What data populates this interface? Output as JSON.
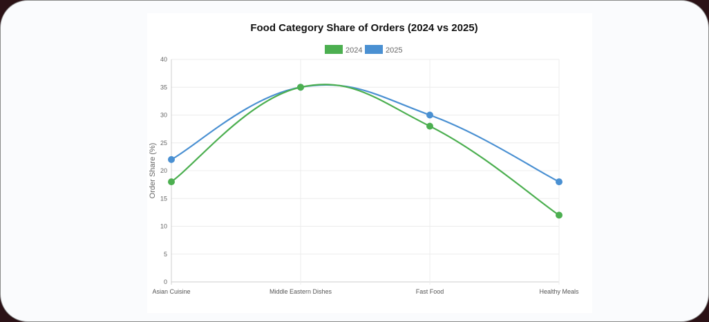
{
  "chart_data": {
    "type": "line",
    "title": "Food Category Share of Orders (2024 vs 2025)",
    "xlabel": "",
    "ylabel": "Order Share (%)",
    "categories": [
      "Asian Cuisine",
      "Middle Eastern Dishes",
      "Fast Food",
      "Healthy Meals"
    ],
    "ylim": [
      0,
      40
    ],
    "yticks": [
      0,
      5,
      10,
      15,
      20,
      25,
      30,
      35,
      40
    ],
    "grid": true,
    "legend": "top",
    "series": [
      {
        "name": "2024",
        "values": [
          18,
          35,
          28,
          12
        ],
        "color": "#4caf50"
      },
      {
        "name": "2025",
        "values": [
          22,
          35,
          30,
          18
        ],
        "color": "#4a90d2"
      }
    ]
  }
}
